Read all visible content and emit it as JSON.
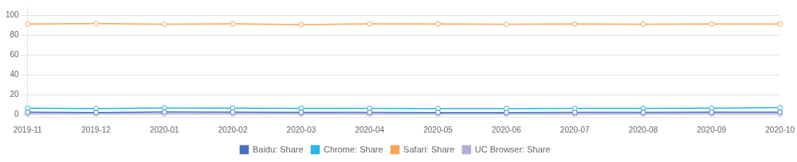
{
  "chart_data": {
    "type": "line",
    "categories": [
      "2019-11",
      "2019-12",
      "2020-01",
      "2020-02",
      "2020-03",
      "2020-04",
      "2020-05",
      "2020-06",
      "2020-07",
      "2020-08",
      "2020-09",
      "2020-10"
    ],
    "series": [
      {
        "name": "Baidu: Share",
        "color": "#4472c4",
        "marker": "circle",
        "values": [
          2.5,
          2.2,
          2.8,
          2.6,
          2.4,
          2.3,
          2.2,
          2.1,
          2.3,
          2.4,
          2.5,
          2.6
        ]
      },
      {
        "name": "Chrome: Share",
        "color": "#29b5e8",
        "marker": "circle",
        "values": [
          6.5,
          6.2,
          6.8,
          6.6,
          6.4,
          6.3,
          6.2,
          6.1,
          6.3,
          6.4,
          6.5,
          7.2
        ]
      },
      {
        "name": "Safari: Share",
        "color": "#f5a55a",
        "marker": "circle",
        "values": [
          91.0,
          91.5,
          90.8,
          91.2,
          90.5,
          91.3,
          91.1,
          90.8,
          91.0,
          90.9,
          91.0,
          91.0
        ]
      },
      {
        "name": "UC Browser: Share",
        "color": "#b3aed6",
        "marker": "circle",
        "values": [
          1.0,
          1.1,
          0.9,
          1.0,
          1.1,
          0.8,
          0.9,
          1.0,
          0.8,
          0.9,
          1.0,
          0.9
        ]
      }
    ],
    "ylim": [
      -2,
      108
    ],
    "yticks": [
      0,
      20,
      40,
      60,
      80,
      100
    ],
    "grid": true,
    "legend": "bottom"
  }
}
